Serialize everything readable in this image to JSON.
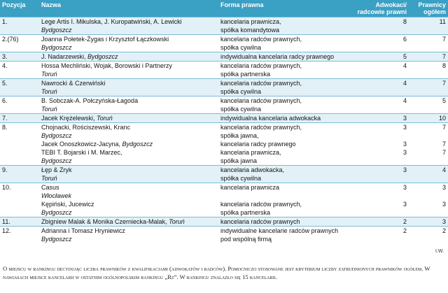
{
  "headers": {
    "position": "Pozycja",
    "name": "Nazwa",
    "form": "Forma prawna",
    "lawyers": "Adwokaci/ radcowie prawni",
    "total": "Prawnicy ogółem"
  },
  "rows": [
    {
      "group": "a",
      "pos": "1.",
      "lines": [
        {
          "name": "Lege Artis I. Mikulska, J. Kuropatwiński, A. Lewicki",
          "form": "kancelaria prawnicza,",
          "lawyers": "8",
          "total": "11"
        },
        {
          "name": "",
          "city": "Bydgoszcz",
          "form": "spółka komandytowa",
          "lawyers": "",
          "total": ""
        }
      ]
    },
    {
      "group": "b",
      "pos": "2.(76)",
      "lines": [
        {
          "name": "Joanna Połetek-Żygas i Krzysztof Łączkowski",
          "form": "kancelaria radców prawnych,",
          "lawyers": "6",
          "total": "7"
        },
        {
          "name": "",
          "city": "Bydgoszcz",
          "form": "spółka cywilna",
          "lawyers": "",
          "total": ""
        }
      ]
    },
    {
      "group": "a",
      "pos": "3.",
      "lines": [
        {
          "name": "J. Nadarzewski, ",
          "city": "Bydgoszcz",
          "form": "indywidualna kancelaria radcy prawnego",
          "lawyers": "5",
          "total": "7"
        }
      ]
    },
    {
      "group": "b",
      "pos": "4.",
      "lines": [
        {
          "name": "Hossa Mechliński, Wojak, Borowski i Partnerzy",
          "form": "kancelaria radców prawnych,",
          "lawyers": "4",
          "total": "8"
        },
        {
          "name": "",
          "city": "Toruń",
          "form": "spółka partnerska",
          "lawyers": "",
          "total": ""
        }
      ]
    },
    {
      "group": "a",
      "pos": "5.",
      "lines": [
        {
          "name": "Nawrocki & Czerwiński",
          "form": "kancelaria radców prawnych,",
          "lawyers": "4",
          "total": "7"
        },
        {
          "name": "",
          "city": "Toruń",
          "form": "spółka cywilna",
          "lawyers": "",
          "total": ""
        }
      ]
    },
    {
      "group": "b",
      "pos": "6.",
      "lines": [
        {
          "name": "B. Sobczak-A. Połczyńska-Łagoda",
          "form": "kancelaria radców prawnych,",
          "lawyers": "4",
          "total": "5"
        },
        {
          "name": "",
          "city": "Toruń",
          "form": "spółka cywilna",
          "lawyers": "",
          "total": ""
        }
      ]
    },
    {
      "group": "a",
      "pos": "7.",
      "lines": [
        {
          "name": "Jacek Krężelewski, ",
          "city": "Toruń",
          "form": "indywidualna kancelaria adwokacka",
          "lawyers": "3",
          "total": "10"
        }
      ]
    },
    {
      "group": "b",
      "pos": "8.",
      "lines": [
        {
          "name": "Chojnacki, Rościszewski, Kranc",
          "form": "kancelaria radców prawnych,",
          "lawyers": "3",
          "total": "7"
        },
        {
          "name": "",
          "city": "Bydgoszcz",
          "form": "spółka jawna,",
          "lawyers": "",
          "total": ""
        },
        {
          "name": "Jacek Onoszkowicz-Jacyna, ",
          "city": "Bydgoszcz",
          "form": "kancelaria radcy prawnego",
          "lawyers": "3",
          "total": "7"
        },
        {
          "name": "TEBI T. Bojarski i M. Marzec,",
          "form": "kancelaria prawnicza,",
          "lawyers": "3",
          "total": "7"
        },
        {
          "name": "",
          "city": "Bydgoszcz",
          "form": "spółka jawna",
          "lawyers": "",
          "total": ""
        }
      ]
    },
    {
      "group": "a",
      "pos": "9.",
      "lines": [
        {
          "name": "Łęp & Zryk",
          "form": "kancelaria adwokacka,",
          "lawyers": "3",
          "total": "4"
        },
        {
          "name": "",
          "city": "Toruń",
          "form": "spółka cywilna",
          "lawyers": "",
          "total": ""
        }
      ]
    },
    {
      "group": "b",
      "pos": "10.",
      "lines": [
        {
          "name": "Casus",
          "form": "kancelaria prawnicza",
          "lawyers": "3",
          "total": "3"
        },
        {
          "name": "",
          "city": "Włocławek",
          "form": "",
          "lawyers": "",
          "total": ""
        },
        {
          "name": "Kępiński, Jucewicz",
          "form": "kancelaria radców prawnych,",
          "lawyers": "3",
          "total": "3"
        },
        {
          "name": "",
          "city": "Bydgoszcz",
          "form": "spółka partnerska",
          "lawyers": "",
          "total": ""
        }
      ]
    },
    {
      "group": "a",
      "pos": "11.",
      "lines": [
        {
          "name": "Zbigniew Malak & Monika Czerniecka-Malak, ",
          "city": "Toruń",
          "form": "kancelaria radców prawnych",
          "lawyers": "2",
          "total": "3"
        }
      ]
    },
    {
      "group": "b",
      "pos": "12.",
      "lines": [
        {
          "name": "Adrianna i Tomasz Hryniewicz",
          "form": "indywidualne kancelarie radców prawnych",
          "lawyers": "2",
          "total": "2"
        },
        {
          "name": "",
          "city": "Bydgoszcz",
          "form": "pod wspólną firmą",
          "lawyers": "",
          "total": ""
        }
      ]
    }
  ],
  "corner_note": "I.W.",
  "footnote": "O miejscu w rankingu decydując liczba prawników z kwalifikacjami (adwokatów i radców). Pomocniczo stosowane jest kryterium liczby zatrudnionych prawników ogółem. W nawiasach miejsce kancelarii w ostatnim ogólnopolskim rankingu „Rz”. W rankingu znalazło się 15 kancelarii."
}
